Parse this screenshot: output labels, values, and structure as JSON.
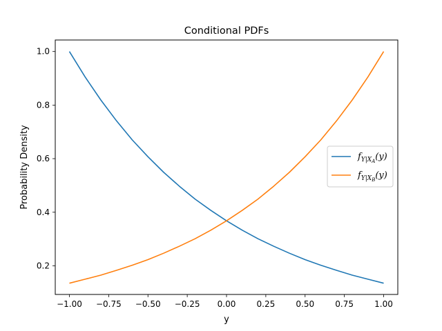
{
  "chart_data": {
    "type": "line",
    "title": "Conditional PDFs",
    "xlabel": "y",
    "ylabel": "Probability Density",
    "xlim": [
      -1.09,
      1.09
    ],
    "ylim": [
      0.093,
      1.043
    ],
    "xticks": [
      -1.0,
      -0.75,
      -0.5,
      -0.25,
      0.0,
      0.25,
      0.5,
      0.75,
      1.0
    ],
    "xtick_labels": [
      "−1.00",
      "−0.75",
      "−0.50",
      "−0.25",
      "0.00",
      "0.25",
      "0.50",
      "0.75",
      "1.00"
    ],
    "yticks": [
      0.2,
      0.4,
      0.6,
      0.8,
      1.0
    ],
    "ytick_labels": [
      "0.2",
      "0.4",
      "0.6",
      "0.8",
      "1.0"
    ],
    "grid": false,
    "legend_position": "center-right",
    "x": [
      -1.0,
      -0.9,
      -0.8,
      -0.7,
      -0.6,
      -0.5,
      -0.4,
      -0.3,
      -0.2,
      -0.1,
      0.0,
      0.1,
      0.2,
      0.3,
      0.4,
      0.5,
      0.6,
      0.7,
      0.8,
      0.9,
      1.0
    ],
    "series": [
      {
        "name": "f_{Y|X_A}(y)",
        "legend_main": "f",
        "legend_sub": "Y|X",
        "legend_subsub": "A",
        "legend_tail": "(y)",
        "color": "#1f77b4",
        "values": [
          1.0,
          0.905,
          0.819,
          0.741,
          0.67,
          0.607,
          0.549,
          0.497,
          0.449,
          0.407,
          0.368,
          0.333,
          0.301,
          0.273,
          0.247,
          0.223,
          0.202,
          0.183,
          0.165,
          0.15,
          0.135
        ]
      },
      {
        "name": "f_{Y|X_B}(y)",
        "legend_main": "f",
        "legend_sub": "Y|X",
        "legend_subsub": "B",
        "legend_tail": "(y)",
        "color": "#ff7f0e",
        "values": [
          0.135,
          0.15,
          0.165,
          0.183,
          0.202,
          0.223,
          0.247,
          0.273,
          0.301,
          0.333,
          0.368,
          0.407,
          0.449,
          0.497,
          0.549,
          0.607,
          0.67,
          0.741,
          0.819,
          0.905,
          1.0
        ]
      }
    ]
  }
}
